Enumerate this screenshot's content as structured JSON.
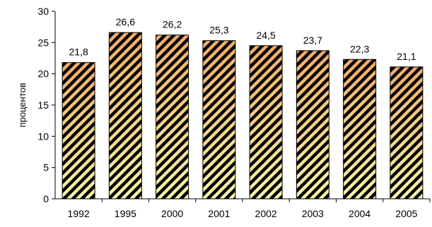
{
  "chart_data": {
    "type": "bar",
    "categories": [
      "1992",
      "1995",
      "2000",
      "2001",
      "2002",
      "2003",
      "2004",
      "2005"
    ],
    "values": [
      21.8,
      26.6,
      26.2,
      25.3,
      24.5,
      23.7,
      22.3,
      21.1
    ],
    "value_labels": [
      "21,8",
      "26,6",
      "26,2",
      "25,3",
      "24,5",
      "23,7",
      "22,3",
      "21,1"
    ],
    "ylabel": "процентов",
    "ylim": [
      0,
      30
    ],
    "yticks": [
      0,
      5,
      10,
      15,
      20,
      25,
      30
    ],
    "grid": false,
    "bar_fill": "gradient orange-to-yellow with black diagonal hatching",
    "colors": {
      "bar_top": "#f3ac6a",
      "bar_bottom": "#f5f5a8",
      "hatch": "#000000",
      "axis": "#000000"
    }
  }
}
